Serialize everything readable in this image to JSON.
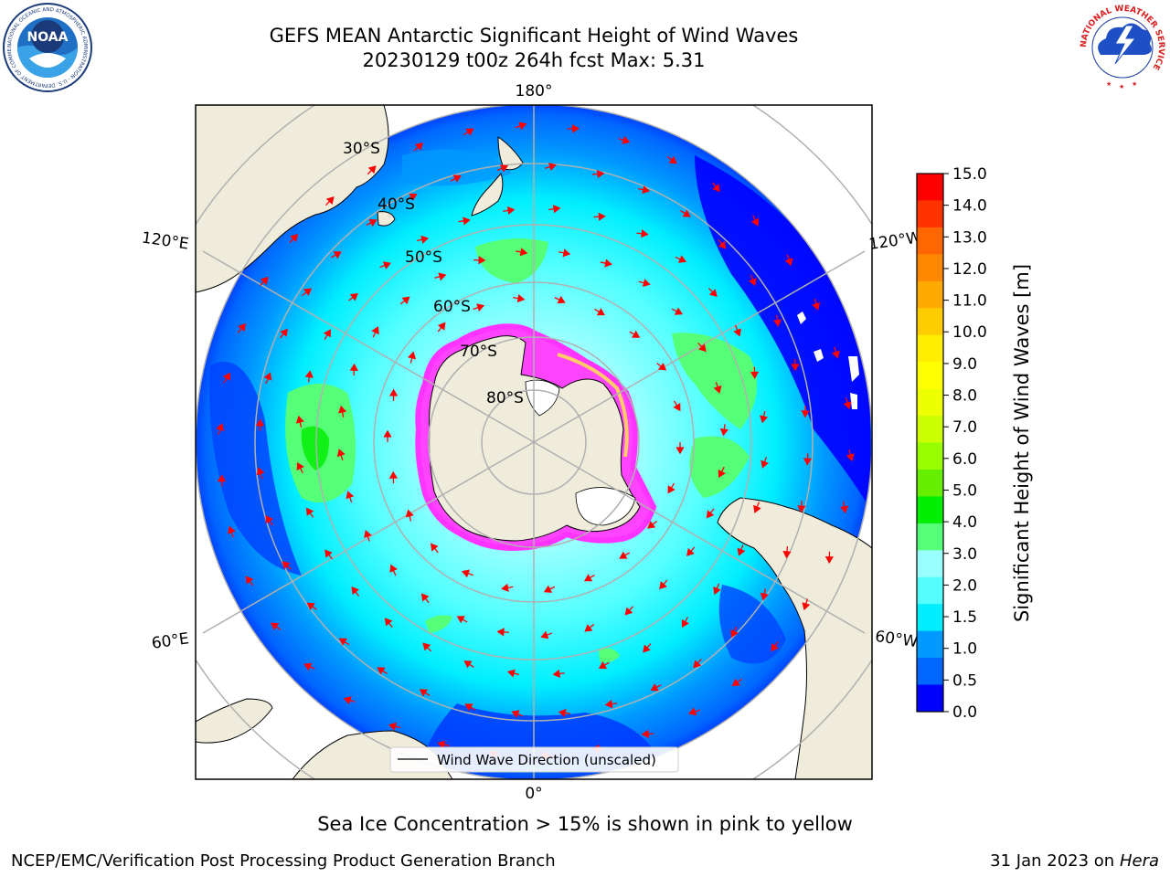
{
  "header": {
    "title_line1": "GEFS MEAN Antarctic Significant Height of Wind Waves",
    "title_line2": "20230129 t00z 264h fcst   Max: 5.31",
    "noaa_logo_text": "NOAA",
    "noaa_ring_text": "NATIONAL OCEANIC AND ATMOSPHERIC ADMINISTRATION · U.S. DEPARTMENT OF COMMERCE",
    "nws_ring_text": "NATIONAL WEATHER SERVICE"
  },
  "map": {
    "projection": "south-polar-stereographic",
    "longitude_labels": [
      "180°",
      "120°E",
      "120°W",
      "60°E",
      "60°W",
      "0°"
    ],
    "latitude_labels": [
      "30°S",
      "40°S",
      "50°S",
      "60°S",
      "70°S",
      "80°S"
    ],
    "legend_label": "Wind Wave Direction (unscaled)",
    "land_color": "#efecdc",
    "ice_color": "#ff33ff",
    "arrow_color": "#ff0000"
  },
  "colorbar": {
    "label": "Significant Height of Wind Waves [m]",
    "ticks": [
      "15.0",
      "14.0",
      "13.0",
      "12.0",
      "11.0",
      "10.0",
      "9.0",
      "8.0",
      "7.0",
      "6.0",
      "5.0",
      "4.0",
      "3.0",
      "2.0",
      "1.5",
      "1.0",
      "0.5",
      "0.0"
    ],
    "colors": [
      "#ff0000",
      "#ff3300",
      "#ff6600",
      "#ff8800",
      "#ffaa00",
      "#ffcc00",
      "#ffee00",
      "#ffff00",
      "#eeff00",
      "#ccff00",
      "#99ff00",
      "#66ee00",
      "#00ee00",
      "#55ff77",
      "#99ffff",
      "#55ffff",
      "#00eeff",
      "#0099ff",
      "#0066ff",
      "#0000ff"
    ]
  },
  "footer": {
    "caption": "Sea Ice Concentration > 15% is shown in pink to yellow",
    "left": "NCEP/EMC/Verification Post Processing Product Generation Branch",
    "right_date": "31 Jan 2023 on",
    "right_host": "Hera"
  }
}
